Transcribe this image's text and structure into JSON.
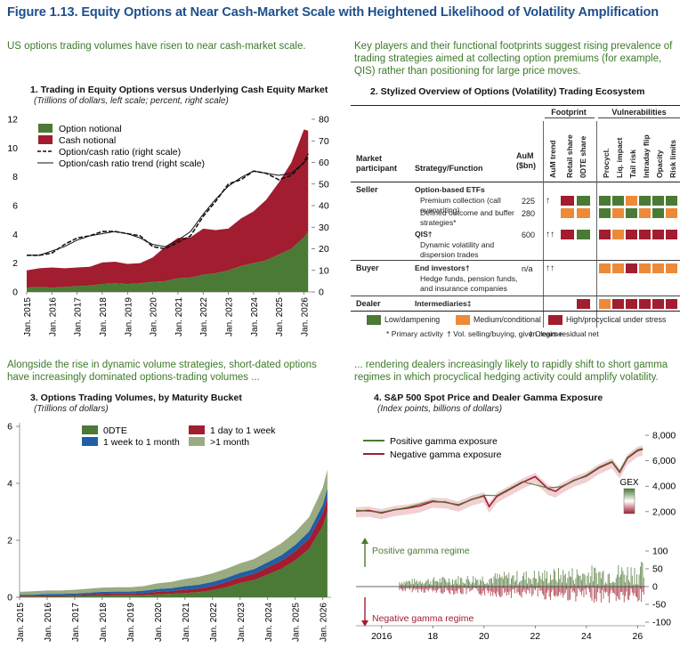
{
  "figure_title": "Figure 1.13. Equity Options at Near Cash-Market Scale with Heightened Likelihood of Volatility Amplification",
  "intro_left_top": "US options trading volumes have risen to near cash-market scale.",
  "intro_right_top": "Key players and their functional footprints suggest rising prevalence of trading strategies aimed at collecting option premiums (for example, QIS) rather than positioning for large price moves.",
  "intro_left_bottom": "Alongside the rise in dynamic volume strategies, short-dated options have increasingly dominated options-trading volumes ...",
  "intro_right_bottom": "... rendering dealers increasingly likely to rapidly shift to short gamma regimes in which procyclical hedging activity could amplify volatility.",
  "colors": {
    "green": "#4a7a35",
    "red": "#a11d2f",
    "orange": "#ec8a3a",
    "blue": "#1f5fa5",
    "sage": "#9aab82",
    "title_blue": "#1d4f8c",
    "intro_green": "#3d7a2a"
  },
  "chart_data": [
    {
      "id": "panel1",
      "type": "area",
      "title": "1. Trading in Equity Options versus Underlying Cash Equity Market",
      "subtitle": "(Trillions of dollars, left scale; percent, right scale)",
      "x": [
        "2015-01",
        "2015-07",
        "2016-01",
        "2016-07",
        "2017-01",
        "2017-07",
        "2018-01",
        "2018-07",
        "2019-01",
        "2019-07",
        "2020-01",
        "2020-07",
        "2021-01",
        "2021-07",
        "2022-01",
        "2022-07",
        "2023-01",
        "2023-07",
        "2024-01",
        "2024-07",
        "2025-01",
        "2025-07",
        "2026-01",
        "2026-03"
      ],
      "x_tick_labels": [
        "Jan. 2015",
        "Jan. 2016",
        "Jan. 2017",
        "Jan. 2018",
        "Jan. 2019",
        "Jan. 2020",
        "Jan. 2021",
        "Jan. 2022",
        "Jan. 2023",
        "Jan. 2024",
        "Jan. 2025",
        "Jan. 2026"
      ],
      "y_left_ticks": [
        "0",
        "2",
        "4",
        "6",
        "8",
        "10",
        "12"
      ],
      "y_right_ticks": [
        "0",
        "10",
        "20",
        "30",
        "40",
        "50",
        "60",
        "70",
        "80"
      ],
      "ylim_left": [
        0,
        12
      ],
      "ylim_right": [
        0,
        80
      ],
      "series": [
        {
          "name": "Option notional",
          "axis": "left",
          "values": [
            0.3,
            0.35,
            0.3,
            0.35,
            0.4,
            0.45,
            0.55,
            0.6,
            0.55,
            0.6,
            0.7,
            0.75,
            0.95,
            1.0,
            1.2,
            1.3,
            1.5,
            1.8,
            2.0,
            2.2,
            2.6,
            3.0,
            3.8,
            4.2
          ]
        },
        {
          "name": "Cash notional",
          "axis": "left",
          "values": [
            1.2,
            1.3,
            1.4,
            1.3,
            1.3,
            1.3,
            1.5,
            1.5,
            1.4,
            1.4,
            1.7,
            2.4,
            2.8,
            2.8,
            3.2,
            3.0,
            2.9,
            3.3,
            3.6,
            4.2,
            5.0,
            6.0,
            7.5,
            7.0
          ]
        },
        {
          "name": "Option/cash ratio (right scale)",
          "axis": "right",
          "values": [
            17,
            17,
            18,
            22,
            25,
            26,
            28,
            28,
            27,
            26,
            21,
            20,
            23,
            26,
            35,
            42,
            50,
            52,
            56,
            55,
            52,
            54,
            60,
            64
          ]
        },
        {
          "name": "Option/cash ratio trend (right scale)",
          "axis": "right",
          "values": [
            17,
            17,
            19,
            21,
            24,
            26,
            27,
            28,
            27,
            25,
            22,
            21,
            24,
            28,
            36,
            43,
            49,
            53,
            56,
            55,
            54,
            55,
            60,
            62
          ]
        }
      ]
    },
    {
      "id": "panel2",
      "type": "table",
      "title": "2. Stylized Overview of Options (Volatility) Trading Ecosystem",
      "header_market": "Market participant",
      "header_strategy": "Strategy/Function",
      "header_aum": "AuM ($bn)",
      "header_footprint": "Footprint",
      "header_vulnerabilities": "Vulnerabilities",
      "footprint_cols": [
        "AuM trend",
        "Retail share",
        "0DTE share"
      ],
      "vuln_cols": [
        "Procycl.",
        "Liq. impact",
        "Tail risk",
        "Intraday flip",
        "Opacity",
        "Risk limits"
      ],
      "rows": [
        {
          "participant": "Seller",
          "strategy": "Option-based ETFs",
          "bold": true,
          "aum": "",
          "trend": "",
          "fp": [
            "",
            ""
          ],
          "vuln": [
            "",
            "",
            "",
            "",
            "",
            ""
          ]
        },
        {
          "participant": "",
          "strategy": "Premium collection (call overwriting)",
          "bold": false,
          "aum": "225",
          "trend": "↑",
          "fp": [
            "red",
            "green"
          ],
          "vuln": [
            "green",
            "green",
            "orange",
            "green",
            "green",
            "green"
          ]
        },
        {
          "participant": "",
          "strategy": "Defined outcome and buffer strategies*",
          "bold": false,
          "aum": "280",
          "trend": "",
          "fp": [
            "orange",
            "orange"
          ],
          "vuln": [
            "green",
            "orange",
            "green",
            "orange",
            "green",
            "orange"
          ]
        },
        {
          "participant": "",
          "strategy": "QIS†",
          "bold": true,
          "aum": "600",
          "trend": "↑↑",
          "fp": [
            "red",
            "green"
          ],
          "vuln": [
            "red",
            "orange",
            "red",
            "red",
            "red",
            "red"
          ]
        },
        {
          "participant": "",
          "strategy": "Dynamic volatility and dispersion trades",
          "bold": false,
          "aum": "",
          "trend": "",
          "fp": [
            "",
            ""
          ],
          "vuln": [
            "",
            "",
            "",
            "",
            "",
            ""
          ]
        },
        {
          "participant": "Buyer",
          "strategy": "End investors†",
          "bold": true,
          "aum": "n/a",
          "trend": "↑↑",
          "fp": [
            "",
            ""
          ],
          "vuln": [
            "orange",
            "orange",
            "red",
            "orange",
            "orange",
            "orange"
          ]
        },
        {
          "participant": "",
          "strategy": "Hedge funds, pension funds, and insurance companies",
          "bold": false,
          "aum": "",
          "trend": "",
          "fp": [
            "",
            ""
          ],
          "vuln": [
            "",
            "",
            "",
            "",
            "",
            ""
          ]
        },
        {
          "participant": "Dealer",
          "strategy": "Intermediaries‡",
          "bold": true,
          "aum": "",
          "trend": "",
          "fp": [
            "",
            "red"
          ],
          "vuln": [
            "orange",
            "red",
            "red",
            "red",
            "red",
            "red"
          ]
        }
      ],
      "legend": [
        {
          "label": "Low/dampening",
          "color": "green"
        },
        {
          "label": "Medium/conditional",
          "color": "orange"
        },
        {
          "label": "High/procyclical under stress",
          "color": "red"
        }
      ],
      "notes": [
        "* Primary activity",
        "† Vol. selling/buying, given regime",
        "‡ Clears residual net"
      ]
    },
    {
      "id": "panel3",
      "type": "area",
      "title": "3. Options Trading Volumes, by Maturity Bucket",
      "subtitle": "(Trillions of dollars)",
      "x": [
        "2015-01",
        "2015-07",
        "2016-01",
        "2016-07",
        "2017-01",
        "2017-07",
        "2018-01",
        "2018-07",
        "2019-01",
        "2019-07",
        "2020-01",
        "2020-07",
        "2021-01",
        "2021-07",
        "2022-01",
        "2022-07",
        "2023-01",
        "2023-07",
        "2024-01",
        "2024-07",
        "2025-01",
        "2025-07",
        "2026-01",
        "2026-03"
      ],
      "x_tick_labels": [
        "Jan. 2015",
        "Jan. 2016",
        "Jan. 2017",
        "Jan. 2018",
        "Jan. 2019",
        "Jan. 2020",
        "Jan. 2021",
        "Jan. 2022",
        "Jan. 2023",
        "Jan. 2024",
        "Jan. 2025",
        "Jan. 2026"
      ],
      "y_ticks": [
        "0",
        "2",
        "4",
        "6"
      ],
      "ylim": [
        0,
        6
      ],
      "series": [
        {
          "name": "0DTE",
          "values": [
            0.02,
            0.02,
            0.03,
            0.03,
            0.04,
            0.05,
            0.06,
            0.07,
            0.07,
            0.08,
            0.1,
            0.12,
            0.15,
            0.18,
            0.25,
            0.35,
            0.5,
            0.6,
            0.8,
            1.0,
            1.3,
            1.7,
            2.5,
            3.0
          ]
        },
        {
          "name": "1 day to 1 week",
          "values": [
            0.03,
            0.03,
            0.04,
            0.04,
            0.04,
            0.05,
            0.06,
            0.06,
            0.06,
            0.07,
            0.09,
            0.1,
            0.12,
            0.13,
            0.15,
            0.18,
            0.2,
            0.22,
            0.25,
            0.28,
            0.32,
            0.36,
            0.45,
            0.5
          ]
        },
        {
          "name": "1 week to 1 month",
          "values": [
            0.04,
            0.04,
            0.05,
            0.05,
            0.05,
            0.06,
            0.07,
            0.07,
            0.07,
            0.08,
            0.1,
            0.1,
            0.12,
            0.13,
            0.14,
            0.15,
            0.16,
            0.17,
            0.18,
            0.2,
            0.22,
            0.25,
            0.3,
            0.33
          ]
        },
        {
          "name": ">1 month",
          "values": [
            0.1,
            0.12,
            0.12,
            0.12,
            0.13,
            0.14,
            0.15,
            0.15,
            0.15,
            0.16,
            0.2,
            0.22,
            0.25,
            0.28,
            0.3,
            0.32,
            0.33,
            0.35,
            0.38,
            0.42,
            0.45,
            0.5,
            0.6,
            0.65
          ]
        }
      ]
    },
    {
      "id": "panel4",
      "type": "line",
      "title": "4. S&P 500 Spot Price and Dealer Gamma Exposure",
      "subtitle": "(Index points, billions of dollars)",
      "x_tick_labels": [
        "2016",
        "18",
        "20",
        "22",
        "24",
        "26"
      ],
      "x_tick_years": [
        2016,
        2018,
        2020,
        2022,
        2024,
        2026
      ],
      "xlim": [
        2015.0,
        2026.3
      ],
      "top": {
        "y_ticks": [
          "2,000",
          "4,000",
          "6,000",
          "8,000"
        ],
        "y_tick_values": [
          2000,
          4000,
          6000,
          8000
        ],
        "ylim": [
          1500,
          8700
        ],
        "legend": [
          "Positive gamma exposure",
          "Negative gamma exposure"
        ],
        "colorbar_label": "GEX",
        "years": [
          2015.0,
          2015.5,
          2016.0,
          2016.5,
          2017.0,
          2017.5,
          2018.0,
          2018.5,
          2019.0,
          2019.5,
          2020.0,
          2020.2,
          2020.5,
          2021.0,
          2021.5,
          2022.0,
          2022.5,
          2022.8,
          2023.0,
          2023.5,
          2024.0,
          2024.5,
          2025.0,
          2025.3,
          2025.6,
          2026.0,
          2026.2
        ],
        "spx": [
          2050,
          2100,
          1900,
          2150,
          2270,
          2450,
          2800,
          2750,
          2500,
          2950,
          3230,
          2400,
          3200,
          3750,
          4300,
          4750,
          3800,
          3600,
          3900,
          4450,
          4800,
          5450,
          5900,
          5100,
          6200,
          6800,
          6900
        ]
      },
      "bottom": {
        "y_ticks": [
          "-100",
          "-50",
          "0",
          "50",
          "100"
        ],
        "y_tick_values": [
          -100,
          -50,
          0,
          50,
          100
        ],
        "ylim": [
          -110,
          140
        ],
        "positive_label": "Positive gamma regime",
        "negative_label": "Negative gamma regime"
      }
    }
  ]
}
